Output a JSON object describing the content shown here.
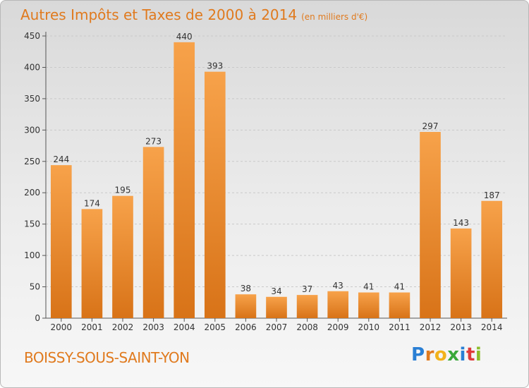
{
  "header": {
    "title": "Autres Impôts et Taxes de 2000 à 2014",
    "unit": "(en milliers d'€)"
  },
  "footer": {
    "commune": "BOISSY-SOUS-SAINT-YON",
    "logo": [
      "P",
      "r",
      "o",
      "x",
      "i",
      "t",
      "i"
    ]
  },
  "colors": {
    "bar_top": "#f7a24a",
    "bar_bottom": "#d87318",
    "title": "#e07a1e"
  },
  "chart_data": {
    "type": "bar",
    "title": "Autres Impôts et Taxes de 2000 à 2014",
    "categories": [
      "2000",
      "2001",
      "2002",
      "2003",
      "2004",
      "2005",
      "2006",
      "2007",
      "2008",
      "2009",
      "2010",
      "2011",
      "2012",
      "2013",
      "2014"
    ],
    "values": [
      244,
      174,
      195,
      273,
      440,
      393,
      38,
      34,
      37,
      43,
      41,
      41,
      297,
      143,
      187
    ],
    "ylim": [
      0,
      450
    ],
    "yticks": [
      0,
      50,
      100,
      150,
      200,
      250,
      300,
      350,
      400,
      450
    ],
    "grid": true
  }
}
